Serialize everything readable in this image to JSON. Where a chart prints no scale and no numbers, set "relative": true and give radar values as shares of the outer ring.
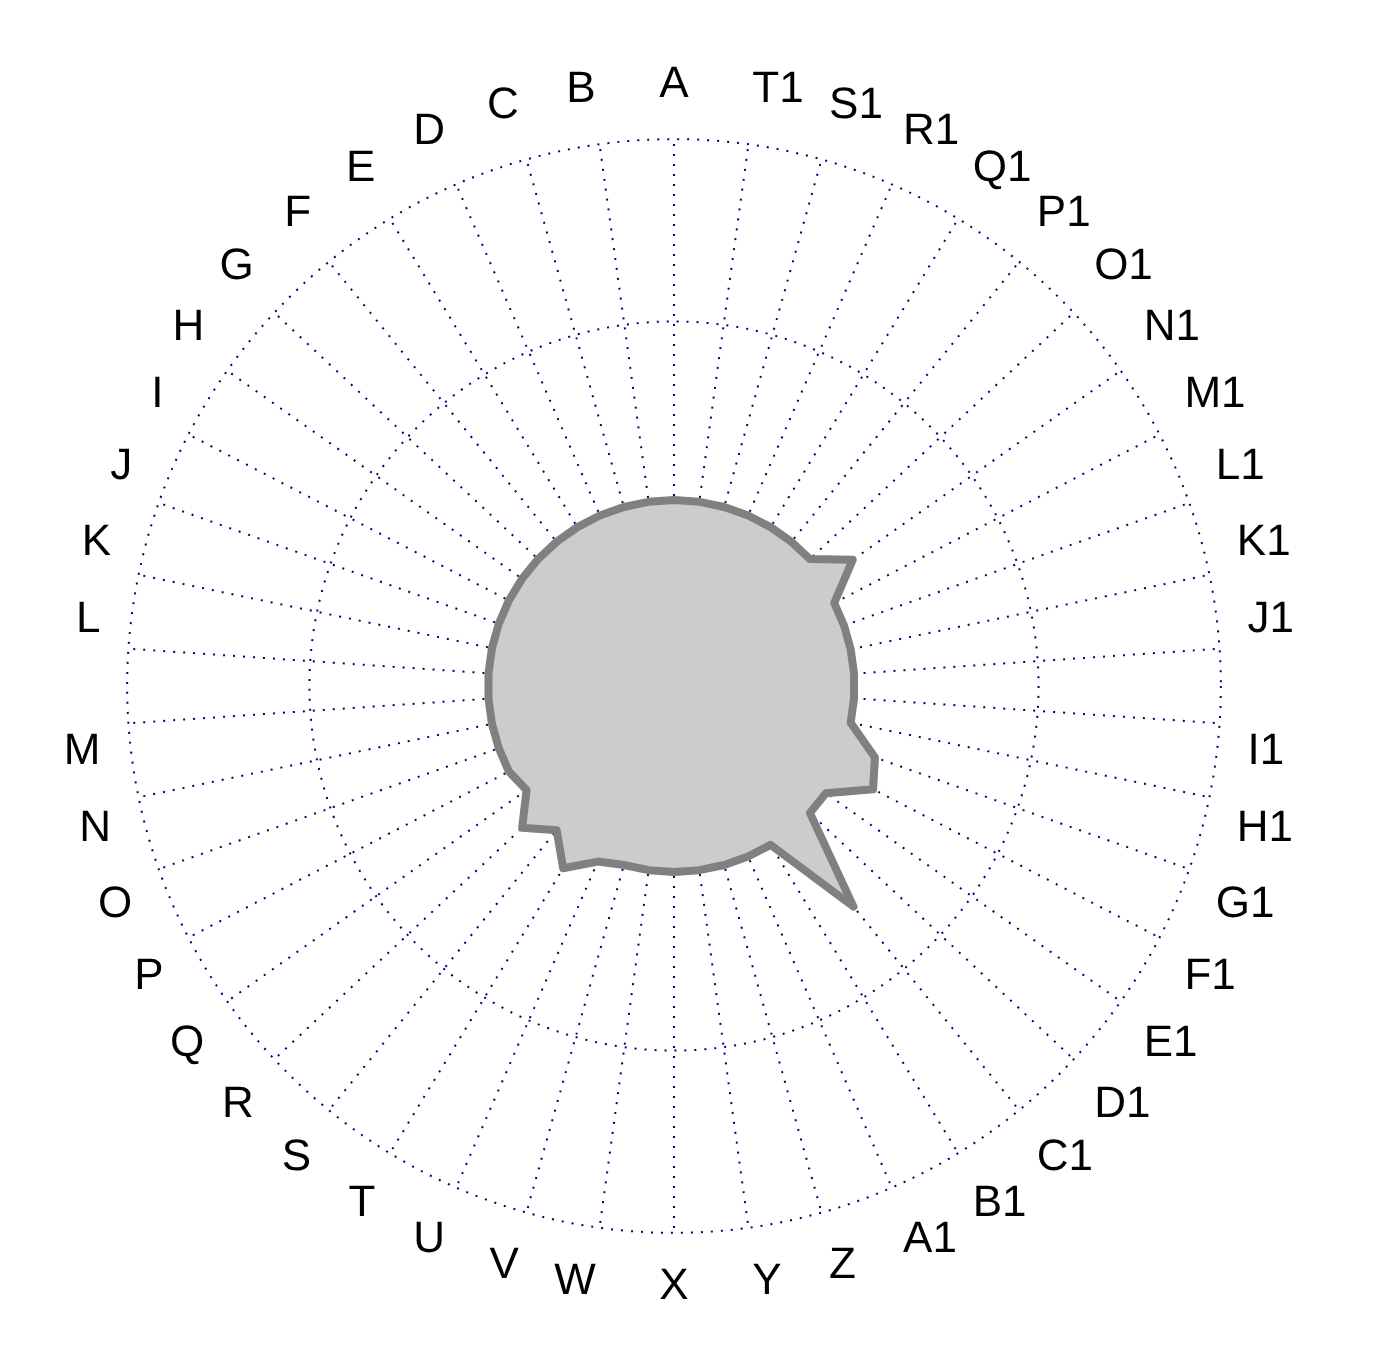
{
  "chart_data": {
    "type": "radar",
    "relative": true,
    "grid": true,
    "legend": false,
    "marker": "none",
    "categories": [
      "A",
      "T1",
      "S1",
      "R1",
      "Q1",
      "P1",
      "O1",
      "N1",
      "M1",
      "L1",
      "K1",
      "J1",
      "I1",
      "H1",
      "G1",
      "F1",
      "E1",
      "D1",
      "C1",
      "B1",
      "A1",
      "Z",
      "Y",
      "X",
      "W",
      "V",
      "U",
      "T",
      "S",
      "R",
      "Q",
      "P",
      "O",
      "N",
      "M",
      "L",
      "K",
      "J",
      "I",
      "H",
      "G",
      "F",
      "E",
      "D",
      "C",
      "B"
    ],
    "series": [
      {
        "color": "#808080",
        "values": [
          0.34,
          0.34,
          0.34,
          0.34,
          0.34,
          0.34,
          0.34,
          0.4,
          0.33,
          0.33,
          0.33,
          0.33,
          0.33,
          0.33,
          0.39,
          0.41,
          0.34,
          0.34,
          0.52,
          0.34,
          0.34,
          0.34,
          0.34,
          0.34,
          0.34,
          0.34,
          0.35,
          0.39,
          0.34,
          0.38,
          0.33,
          0.34,
          0.34,
          0.34,
          0.34,
          0.34,
          0.34,
          0.34,
          0.34,
          0.34,
          0.34,
          0.34,
          0.34,
          0.34,
          0.34,
          0.34
        ]
      }
    ]
  }
}
